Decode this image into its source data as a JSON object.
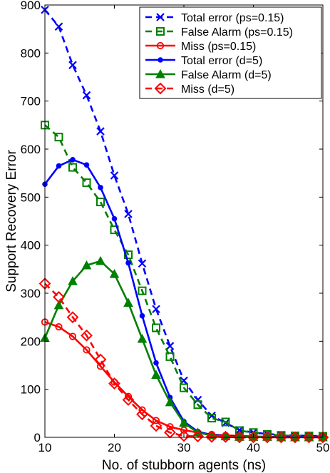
{
  "chart_data": {
    "type": "line",
    "xlabel": "No. of stubborn agents (ns)",
    "ylabel": "Support Recovery Error",
    "xlim": [
      10,
      50
    ],
    "ylim": [
      0,
      900
    ],
    "xticks": [
      10,
      20,
      30,
      40,
      50
    ],
    "yticks": [
      0,
      100,
      200,
      300,
      400,
      500,
      600,
      700,
      800,
      900
    ],
    "grid": false,
    "legend_position": "top-right",
    "x": [
      10,
      12,
      14,
      16,
      18,
      20,
      22,
      24,
      26,
      28,
      30,
      32,
      34,
      36,
      38,
      40,
      42,
      44,
      46,
      48,
      50
    ],
    "series": [
      {
        "name": "Total error (ps=0.15)",
        "color": "#0000ff",
        "dash": "dashed",
        "marker": "x",
        "values": [
          890,
          855,
          775,
          712,
          637,
          545,
          465,
          362,
          267,
          190,
          118,
          78,
          45,
          30,
          15,
          10,
          7,
          5,
          4,
          3,
          3
        ]
      },
      {
        "name": "False Alarm (ps=0.15)",
        "color": "#008000",
        "dash": "dashed",
        "marker": "square",
        "values": [
          650,
          625,
          562,
          530,
          490,
          432,
          380,
          305,
          228,
          168,
          103,
          68,
          40,
          32,
          14,
          10,
          6,
          4,
          3,
          3,
          2
        ]
      },
      {
        "name": "Miss (ps=0.15)",
        "color": "#ff0000",
        "dash": "solid",
        "marker": "circle",
        "values": [
          240,
          230,
          210,
          182,
          148,
          115,
          85,
          57,
          35,
          22,
          15,
          10,
          6,
          4,
          3,
          2,
          1,
          1,
          1,
          1,
          0
        ]
      },
      {
        "name": "Total error (d=5)",
        "color": "#0000ff",
        "dash": "solid",
        "marker": "dot",
        "values": [
          527,
          565,
          578,
          567,
          520,
          455,
          363,
          253,
          155,
          83,
          33,
          12,
          5,
          3,
          2,
          1,
          1,
          1,
          1,
          1,
          1
        ]
      },
      {
        "name": "False Alarm (d=5)",
        "color": "#008000",
        "dash": "solid",
        "marker": "triangle",
        "values": [
          207,
          275,
          325,
          358,
          367,
          340,
          280,
          205,
          130,
          73,
          30,
          10,
          4,
          2,
          1,
          1,
          1,
          0,
          0,
          0,
          0
        ]
      },
      {
        "name": "Miss (d=5)",
        "color": "#ff0000",
        "dash": "dashed",
        "marker": "diamond",
        "values": [
          320,
          292,
          250,
          212,
          162,
          112,
          78,
          48,
          24,
          10,
          3,
          2,
          1,
          1,
          0,
          0,
          0,
          0,
          0,
          0,
          0
        ]
      }
    ]
  }
}
